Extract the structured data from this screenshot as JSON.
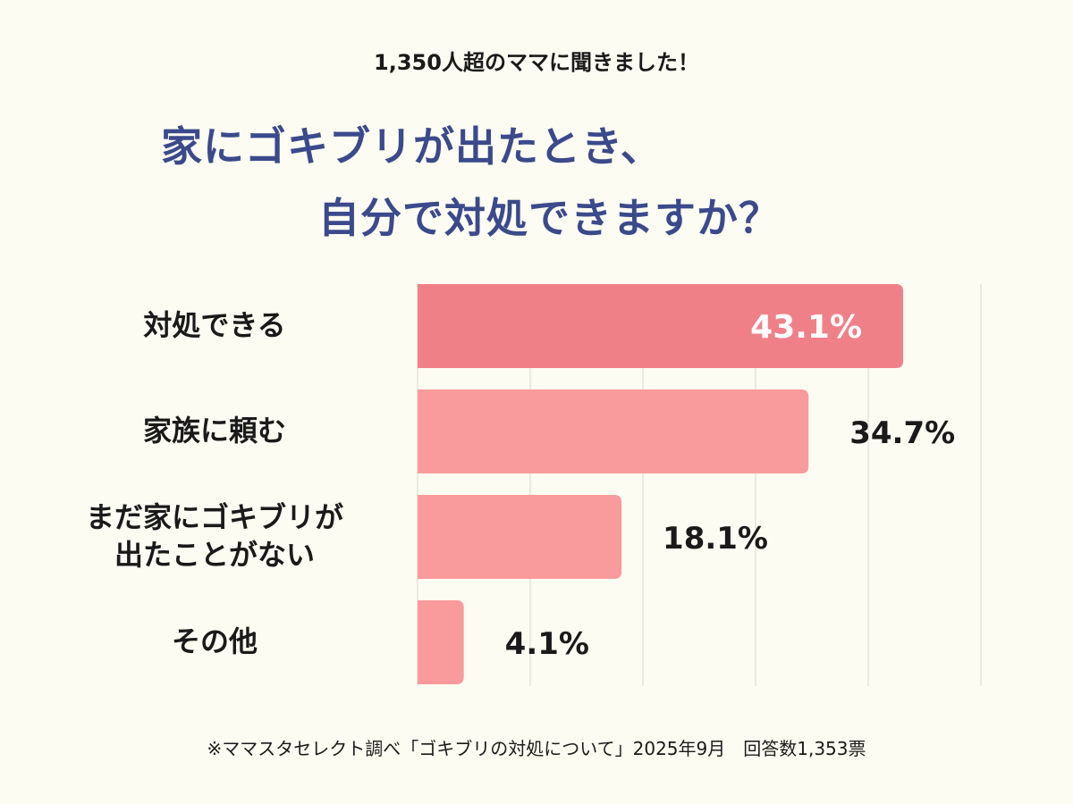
{
  "header": {
    "subtitle": "1,350人超のママに聞きました！",
    "title_line1": "家にゴキブリが出たとき、",
    "title_line2": "自分で対処できますか？"
  },
  "chart_data": {
    "type": "bar",
    "orientation": "horizontal",
    "categories": [
      "対処できる",
      "家族に頼む",
      "まだ家にゴキブリが出たことがない",
      "その他"
    ],
    "category_display": [
      [
        "対処できる"
      ],
      [
        "家族に頼む"
      ],
      [
        "まだ家にゴキブリが",
        "出たことがない"
      ],
      [
        "その他"
      ]
    ],
    "values": [
      43.1,
      34.7,
      18.1,
      4.1
    ],
    "value_labels": [
      "43.1%",
      "34.7%",
      "18.1%",
      "4.1%"
    ],
    "unit": "%",
    "xlim": [
      0,
      50
    ],
    "grid": true,
    "highlight_index": 0,
    "colors": {
      "highlight": "#f08088",
      "bar": "#f99a9c",
      "grid": "#d8d8cc",
      "label_inside": "#ffffff",
      "label_outside": "#1a1a1a"
    }
  },
  "footer": {
    "source": "※ママスタセレクト調べ「ゴキブリの対処について」2025年9月　回答数1,353票"
  }
}
